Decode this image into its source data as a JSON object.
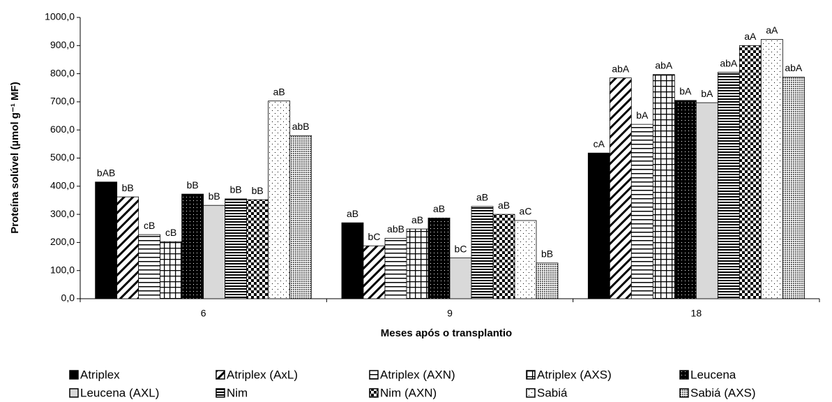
{
  "chart_data": {
    "type": "bar",
    "x_label": "Meses após o transplantio",
    "y_label": "Proteína  solúvel (µmol g⁻¹ MF)",
    "categories": [
      "6",
      "9",
      "18"
    ],
    "ylim": [
      0,
      1000
    ],
    "yticks": [
      {
        "value": 0,
        "label": "0,0"
      },
      {
        "value": 100,
        "label": "100,0"
      },
      {
        "value": 200,
        "label": "200,0"
      },
      {
        "value": 300,
        "label": "300,0"
      },
      {
        "value": 400,
        "label": "400,0"
      },
      {
        "value": 500,
        "label": "500,0"
      },
      {
        "value": 600,
        "label": "600,0"
      },
      {
        "value": 700,
        "label": "700,0"
      },
      {
        "value": 800,
        "label": "800,0"
      },
      {
        "value": 900,
        "label": "900,0"
      },
      {
        "value": 1000,
        "label": "1000,0"
      }
    ],
    "series": [
      {
        "name": "Atriplex",
        "color": "#000000",
        "pattern": "solid",
        "values": [
          415,
          270,
          518
        ],
        "labels": [
          "bAB",
          "aB",
          "cA"
        ]
      },
      {
        "name": "Atriplex (AxL)",
        "color": "#000000",
        "pattern": "diagonal",
        "values": [
          362,
          188,
          785
        ],
        "labels": [
          "bB",
          "bC",
          "abA"
        ]
      },
      {
        "name": "Atriplex (AXN)",
        "color": "#000000",
        "pattern": "horizontal",
        "values": [
          228,
          215,
          620
        ],
        "labels": [
          "cB",
          "abB",
          "bA"
        ]
      },
      {
        "name": "Atriplex (AXS)",
        "color": "#000000",
        "pattern": "grid",
        "values": [
          203,
          248,
          797
        ],
        "labels": [
          "cB",
          "aB",
          "abA"
        ]
      },
      {
        "name": "Leucena",
        "color": "#000000",
        "pattern": "dotted-dark",
        "values": [
          372,
          287,
          705
        ],
        "labels": [
          "bB",
          "aB",
          "bA"
        ]
      },
      {
        "name": "Leucena (AXL)",
        "color": "#d9d9d9",
        "pattern": "solid",
        "values": [
          332,
          145,
          697
        ],
        "labels": [
          "bB",
          "bC",
          "bA"
        ]
      },
      {
        "name": "Nim",
        "color": "#000000",
        "pattern": "dense-horizontal",
        "values": [
          355,
          328,
          805
        ],
        "labels": [
          "bB",
          "aB",
          "abA"
        ]
      },
      {
        "name": "Nim (AXN)",
        "color": "#000000",
        "pattern": "checker",
        "values": [
          352,
          300,
          900
        ],
        "labels": [
          "bB",
          "aB",
          "aA"
        ]
      },
      {
        "name": "Sabiá",
        "color": "#000000",
        "pattern": "sparse-dots",
        "values": [
          703,
          278,
          922
        ],
        "labels": [
          "aB",
          "aC",
          "aA"
        ]
      },
      {
        "name": "Sabiá (AXS)",
        "color": "#000000",
        "pattern": "gray-dots",
        "values": [
          580,
          127,
          788
        ],
        "labels": [
          "abB",
          "bB",
          "abA"
        ]
      }
    ]
  }
}
